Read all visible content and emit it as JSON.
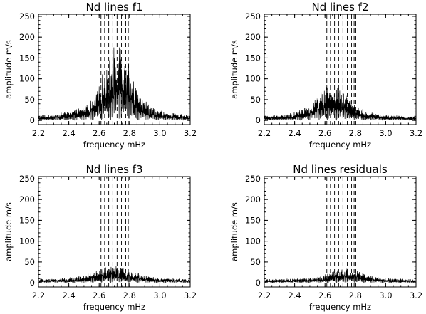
{
  "chart_data": [
    {
      "type": "line",
      "title": "Nd lines f1",
      "xlabel": "frequency mHz",
      "ylabel": "amplitude m/s",
      "xlim": [
        2.2,
        3.2
      ],
      "ylim": [
        -10,
        255
      ],
      "xticks": [
        "2.2",
        "2.4",
        "2.6",
        "2.8",
        "3.0",
        "3.2"
      ],
      "yticks": [
        "0",
        "50",
        "100",
        "150",
        "200",
        "250"
      ],
      "dashed_lines_x": [
        2.612,
        2.636,
        2.663,
        2.69,
        2.718,
        2.747,
        2.775,
        2.792,
        2.803
      ],
      "envelope": {
        "peak_x": 2.72,
        "peak_y": 180,
        "width": 0.085,
        "noise_floor": 10
      },
      "grid": false
    },
    {
      "type": "line",
      "title": "Nd lines f2",
      "xlabel": "frequency mHz",
      "ylabel": "amplitude m/s",
      "xlim": [
        2.2,
        3.2
      ],
      "ylim": [
        -10,
        255
      ],
      "xticks": [
        "2.2",
        "2.4",
        "2.6",
        "2.8",
        "3.0",
        "3.2"
      ],
      "yticks": [
        "0",
        "50",
        "100",
        "150",
        "200",
        "250"
      ],
      "dashed_lines_x": [
        2.612,
        2.636,
        2.663,
        2.69,
        2.718,
        2.747,
        2.775,
        2.792,
        2.803
      ],
      "envelope": {
        "peak_x": 2.65,
        "peak_y": 80,
        "width": 0.1,
        "noise_floor": 8
      },
      "grid": false
    },
    {
      "type": "line",
      "title": "Nd lines f3",
      "xlabel": "frequency mHz",
      "ylabel": "amplitude m/s",
      "xlim": [
        2.2,
        3.2
      ],
      "ylim": [
        -10,
        255
      ],
      "xticks": [
        "2.2",
        "2.4",
        "2.6",
        "2.8",
        "3.0",
        "3.2"
      ],
      "yticks": [
        "0",
        "50",
        "100",
        "150",
        "200",
        "250"
      ],
      "dashed_lines_x": [
        2.612,
        2.636,
        2.663,
        2.69,
        2.718,
        2.747,
        2.775,
        2.792,
        2.803
      ],
      "envelope": {
        "peak_x": 2.7,
        "peak_y": 33,
        "width": 0.12,
        "noise_floor": 8
      },
      "grid": false
    },
    {
      "type": "line",
      "title": "Nd lines residuals",
      "xlabel": "frequency mHz",
      "ylabel": "amplitude m/s",
      "xlim": [
        2.2,
        3.2
      ],
      "ylim": [
        -10,
        255
      ],
      "xticks": [
        "2.2",
        "2.4",
        "2.6",
        "2.8",
        "3.0",
        "3.2"
      ],
      "yticks": [
        "0",
        "50",
        "100",
        "150",
        "200",
        "250"
      ],
      "dashed_lines_x": [
        2.612,
        2.636,
        2.663,
        2.69,
        2.718,
        2.747,
        2.775,
        2.792,
        2.803
      ],
      "envelope": {
        "peak_x": 2.74,
        "peak_y": 28,
        "width": 0.1,
        "noise_floor": 8
      },
      "grid": false
    }
  ]
}
